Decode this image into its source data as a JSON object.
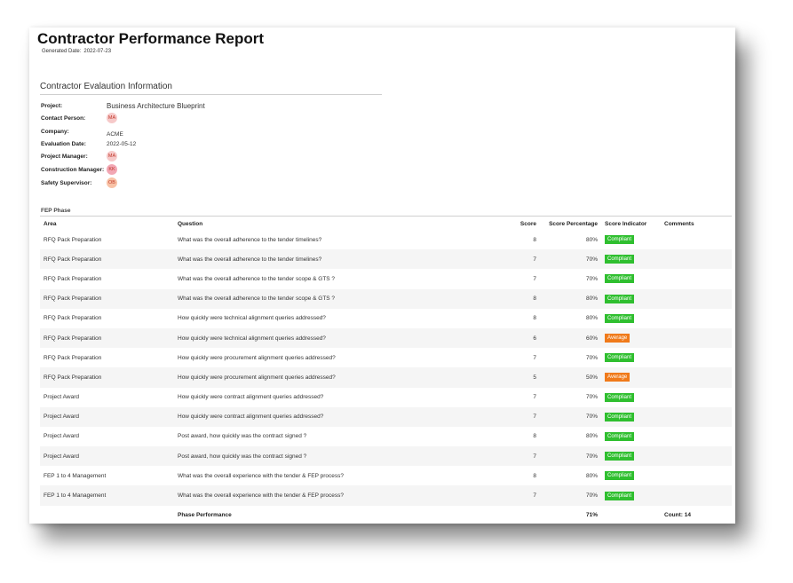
{
  "header": {
    "title": "Contractor Performance Report",
    "generated_label": "Generated Date:",
    "generated_value": "2022-07-23"
  },
  "info": {
    "section_title": "Contractor Evalaution Information",
    "project_label": "Project:",
    "project_value": "Business Architecture Blueprint",
    "contact_label": "Contact Person:",
    "contact_initials": "MA",
    "company_label": "Company:",
    "company_value": "ACME",
    "eval_date_label": "Evaluation Date:",
    "eval_date_value": "2022-05-12",
    "pm_label": "Project Manager:",
    "pm_initials": "MA",
    "cm_label": "Construction Manager:",
    "cm_initials": "KK",
    "ss_label": "Safety Supervisor:",
    "ss_initials": "OB",
    "avatar_colors": {
      "MA": "#f6c9c9",
      "KK": "#f2a7b4",
      "OB": "#f8c2a6"
    }
  },
  "table": {
    "phase": "FEP Phase",
    "headers": [
      "Area",
      "Question",
      "Score",
      "Score Percentage",
      "Score Indicator",
      "Comments"
    ],
    "rows": [
      {
        "area": "RFQ Pack Preparation",
        "question": "What was the overall adherence to the tender timelines?",
        "score": "8",
        "pct": "80%",
        "indicator": "Compliant",
        "comments": ""
      },
      {
        "area": "RFQ Pack Preparation",
        "question": "What was the overall adherence to the tender timelines?",
        "score": "7",
        "pct": "70%",
        "indicator": "Compliant",
        "comments": ""
      },
      {
        "area": "RFQ Pack Preparation",
        "question": "What was the overall adherence to the tender scope & GTS ?",
        "score": "7",
        "pct": "70%",
        "indicator": "Compliant",
        "comments": ""
      },
      {
        "area": "RFQ Pack Preparation",
        "question": "What was the overall adherence to the tender scope & GTS ?",
        "score": "8",
        "pct": "80%",
        "indicator": "Compliant",
        "comments": ""
      },
      {
        "area": "RFQ Pack Preparation",
        "question": "How quickly were technical alignment queries addressed?",
        "score": "8",
        "pct": "80%",
        "indicator": "Compliant",
        "comments": ""
      },
      {
        "area": "RFQ Pack Preparation",
        "question": "How quickly were technical alignment queries addressed?",
        "score": "6",
        "pct": "60%",
        "indicator": "Average",
        "comments": ""
      },
      {
        "area": "RFQ Pack Preparation",
        "question": "How quickly were procurement alignment queries addressed?",
        "score": "7",
        "pct": "70%",
        "indicator": "Compliant",
        "comments": ""
      },
      {
        "area": "RFQ Pack Preparation",
        "question": "How quickly were procurement alignment queries addressed?",
        "score": "5",
        "pct": "50%",
        "indicator": "Average",
        "comments": ""
      },
      {
        "area": "Project Award",
        "question": "How quickly were contract alignment queries addressed?",
        "score": "7",
        "pct": "70%",
        "indicator": "Compliant",
        "comments": ""
      },
      {
        "area": "Project Award",
        "question": "How quickly were contract alignment queries addressed?",
        "score": "7",
        "pct": "70%",
        "indicator": "Compliant",
        "comments": ""
      },
      {
        "area": "Project Award",
        "question": "Post award, how quickly was the contract signed ?",
        "score": "8",
        "pct": "80%",
        "indicator": "Compliant",
        "comments": ""
      },
      {
        "area": "Project Award",
        "question": "Post award, how quickly was the contract signed ?",
        "score": "7",
        "pct": "70%",
        "indicator": "Compliant",
        "comments": ""
      },
      {
        "area": "FEP 1 to 4 Management",
        "question": "What was the overall experience with the tender & FEP process?",
        "score": "8",
        "pct": "80%",
        "indicator": "Compliant",
        "comments": ""
      },
      {
        "area": "FEP 1 to 4 Management",
        "question": "What was the overall experience with the tender & FEP process?",
        "score": "7",
        "pct": "70%",
        "indicator": "Compliant",
        "comments": ""
      }
    ],
    "footer": {
      "label": "Phase Performance",
      "pct": "71%",
      "count": "Count: 14"
    },
    "indicator_colors": {
      "Compliant": "#2fbf2f",
      "Average": "#f07a1a"
    }
  }
}
